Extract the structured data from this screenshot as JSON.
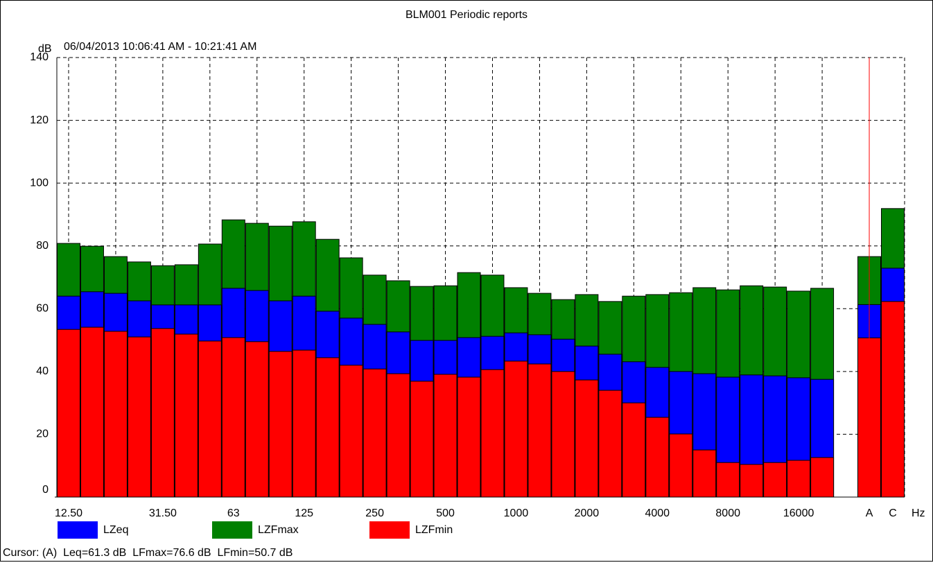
{
  "chart_data": {
    "type": "bar",
    "title": "BLM001 Periodic reports",
    "subtitle": "06/04/2013 10:06:41 AM - 10:21:41 AM",
    "y_label": "dB",
    "x_label": "Hz",
    "categories": [
      "12.50",
      null,
      null,
      null,
      "31.50",
      null,
      null,
      "63",
      null,
      null,
      "125",
      null,
      null,
      "250",
      null,
      null,
      "500",
      null,
      null,
      "1000",
      null,
      null,
      "2000",
      null,
      null,
      "4000",
      null,
      null,
      "8000",
      null,
      null,
      "16000",
      null,
      null,
      "A",
      "C"
    ],
    "series": [
      {
        "name": "LZeq",
        "color": "#0000ff",
        "values": [
          64.0,
          65.4,
          64.9,
          62.5,
          61.2,
          61.2,
          61.2,
          66.5,
          65.8,
          62.5,
          64.0,
          59.2,
          57.0,
          55.0,
          52.6,
          49.9,
          49.9,
          50.8,
          51.2,
          52.3,
          51.7,
          50.3,
          48.1,
          45.5,
          43.1,
          41.3,
          40.0,
          39.3,
          38.2,
          38.9,
          38.6,
          38.0,
          37.5,
          null,
          61.3,
          72.9
        ]
      },
      {
        "name": "LZFmax",
        "color": "#008000",
        "values": [
          80.8,
          79.9,
          76.6,
          74.9,
          73.7,
          74.0,
          80.6,
          88.3,
          87.2,
          86.3,
          87.7,
          82.1,
          76.2,
          70.7,
          68.9,
          67.1,
          67.3,
          71.5,
          70.7,
          66.7,
          64.9,
          62.9,
          64.5,
          62.3,
          64.0,
          64.5,
          65.1,
          66.7,
          66.0,
          67.3,
          66.9,
          65.6,
          66.5,
          null,
          76.6,
          91.9
        ]
      },
      {
        "name": "LZFmin",
        "color": "#ff0000",
        "values": [
          53.4,
          54.1,
          52.8,
          51.0,
          53.7,
          51.9,
          49.7,
          50.8,
          49.5,
          46.4,
          46.8,
          44.4,
          42.0,
          40.8,
          39.3,
          36.9,
          39.1,
          38.2,
          40.6,
          43.3,
          42.4,
          40.0,
          37.3,
          34.0,
          30.0,
          25.4,
          20.1,
          15.0,
          11.0,
          10.4,
          11.0,
          11.7,
          12.6,
          null,
          50.7,
          62.3
        ]
      }
    ],
    "ylim": [
      0,
      140
    ],
    "yticks": [
      0,
      20,
      40,
      60,
      80,
      100,
      120,
      140
    ],
    "grid": true,
    "cursor_text": "Cursor: (A)  Leq=61.3 dB  LFmax=76.6 dB  LFmin=50.7 dB"
  }
}
